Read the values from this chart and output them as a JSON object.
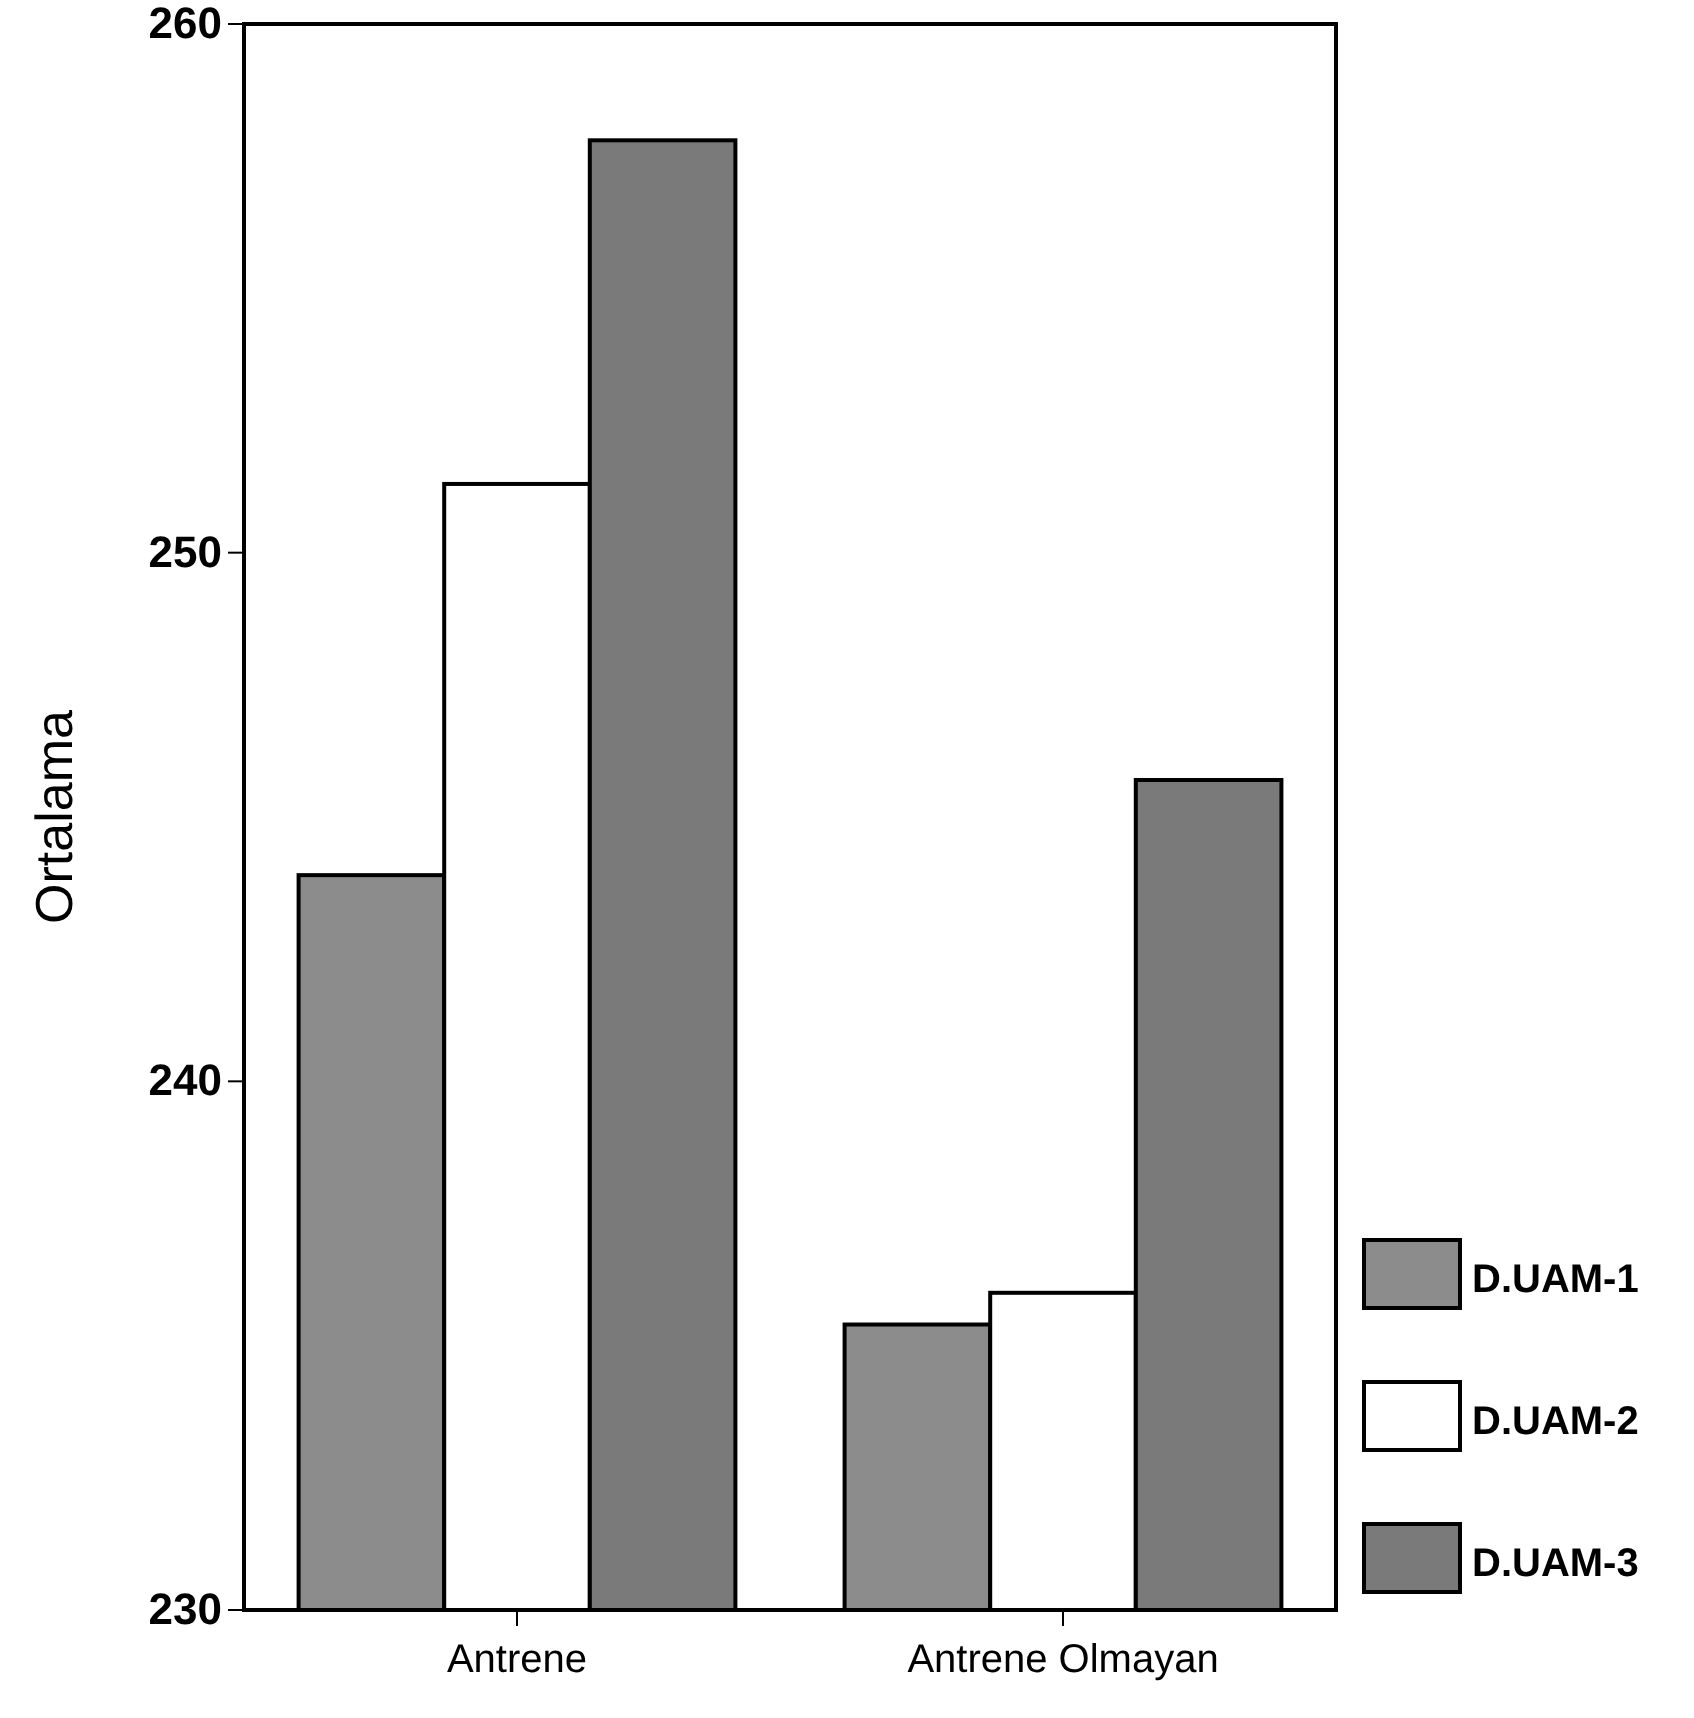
{
  "chart_data": {
    "type": "bar",
    "ylabel": "Ortalama",
    "categories": [
      "Antrene",
      "Antrene Olmayan"
    ],
    "series": [
      {
        "name": "D.UAM-1",
        "color": "#8c8c8c",
        "values": [
          243.9,
          235.4
        ]
      },
      {
        "name": "D.UAM-2",
        "color": "#ffffff",
        "values": [
          251.3,
          236.0
        ]
      },
      {
        "name": "D.UAM-3",
        "color": "#7a7a7a",
        "values": [
          257.8,
          245.7
        ]
      }
    ],
    "ylim": [
      230,
      260
    ],
    "yticks": [
      230,
      240,
      250,
      260
    ],
    "grid": false,
    "legend": "bottom right"
  }
}
